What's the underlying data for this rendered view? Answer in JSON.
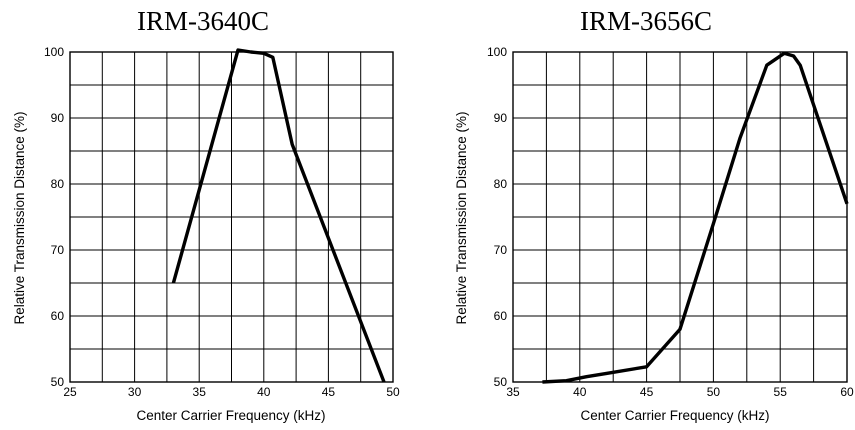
{
  "chart_data": [
    {
      "type": "line",
      "title": "IRM-3640C",
      "xlabel": "Center Carrier Frequency  (kHz)",
      "ylabel": "Relative Transmission Distance (%)",
      "xlim": [
        25,
        50
      ],
      "ylim": [
        50,
        100
      ],
      "x_ticks": [
        "25",
        "30",
        "35",
        "40",
        "45",
        "50"
      ],
      "y_ticks": [
        "50",
        "60",
        "70",
        "80",
        "90",
        "100"
      ],
      "grid": true,
      "series": [
        {
          "x": [
            33,
            38,
            39,
            40,
            40.7,
            42.2,
            49.3
          ],
          "y": [
            65,
            100.3,
            100,
            99.8,
            99.2,
            86,
            50
          ]
        }
      ]
    },
    {
      "type": "line",
      "title": "IRM-3656C",
      "xlabel": "Center Carrier Frequency  (kHz)",
      "ylabel": "Relative Transmission Distance (%)",
      "xlim": [
        35,
        60
      ],
      "ylim": [
        50,
        100
      ],
      "x_ticks": [
        "35",
        "40",
        "45",
        "50",
        "55",
        "60"
      ],
      "y_ticks": [
        "50",
        "60",
        "70",
        "80",
        "90",
        "100"
      ],
      "grid": true,
      "series": [
        {
          "x": [
            37.2,
            39,
            40.5,
            42,
            45,
            47.5,
            50,
            52,
            54,
            55.3,
            56,
            56.5,
            60
          ],
          "y": [
            50,
            50.2,
            50.8,
            51.3,
            52.3,
            58,
            74,
            87,
            98,
            99.8,
            99.4,
            98,
            77
          ]
        }
      ]
    }
  ]
}
